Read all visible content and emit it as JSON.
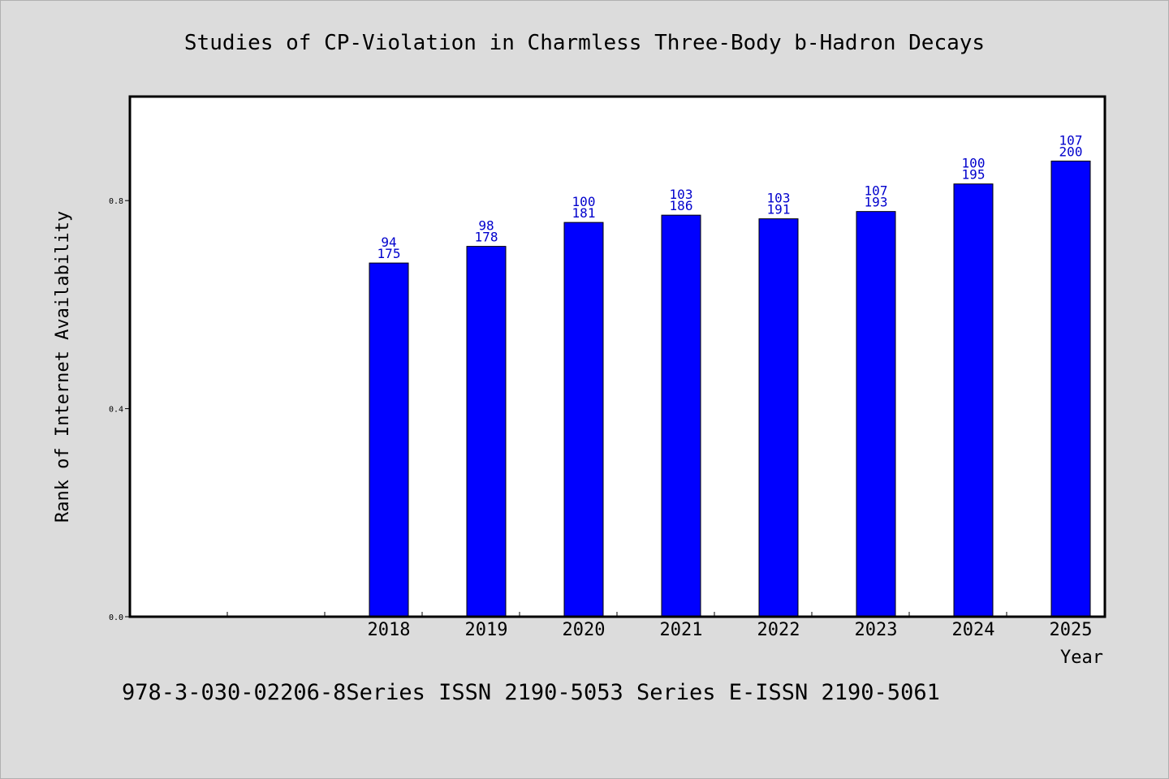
{
  "chart_data": {
    "type": "bar",
    "title": "Studies of CP-Violation in Charmless Three-Body b-Hadron Decays",
    "xlabel": "Year",
    "ylabel": "Rank of Internet Availability",
    "categories": [
      "",
      "",
      "2018",
      "2019",
      "2020",
      "2021",
      "2022",
      "2023",
      "2024",
      "2025"
    ],
    "values": [
      null,
      null,
      0.68,
      0.712,
      0.758,
      0.772,
      0.765,
      0.779,
      0.832,
      0.876
    ],
    "data_labels_top": [
      "",
      "",
      "94",
      "98",
      "100",
      "103",
      "103",
      "107",
      "100",
      "107"
    ],
    "data_labels_bottom": [
      "",
      "",
      "175",
      "178",
      "181",
      "186",
      "191",
      "193",
      "195",
      "200"
    ],
    "yticks": [
      0.0,
      0.4,
      0.8
    ],
    "ytick_labels": [
      "0.0",
      "0.4",
      "0.8"
    ],
    "ylim": [
      0.0,
      1.0
    ],
    "grid": false,
    "colors": {
      "bar": "#0000ff",
      "data_label": "#0000cc",
      "background": "#dcdcdc",
      "plot_area": "#ffffff"
    }
  },
  "footer": "978-3-030-02206-8Series ISSN 2190-5053 Series E-ISSN 2190-5061"
}
